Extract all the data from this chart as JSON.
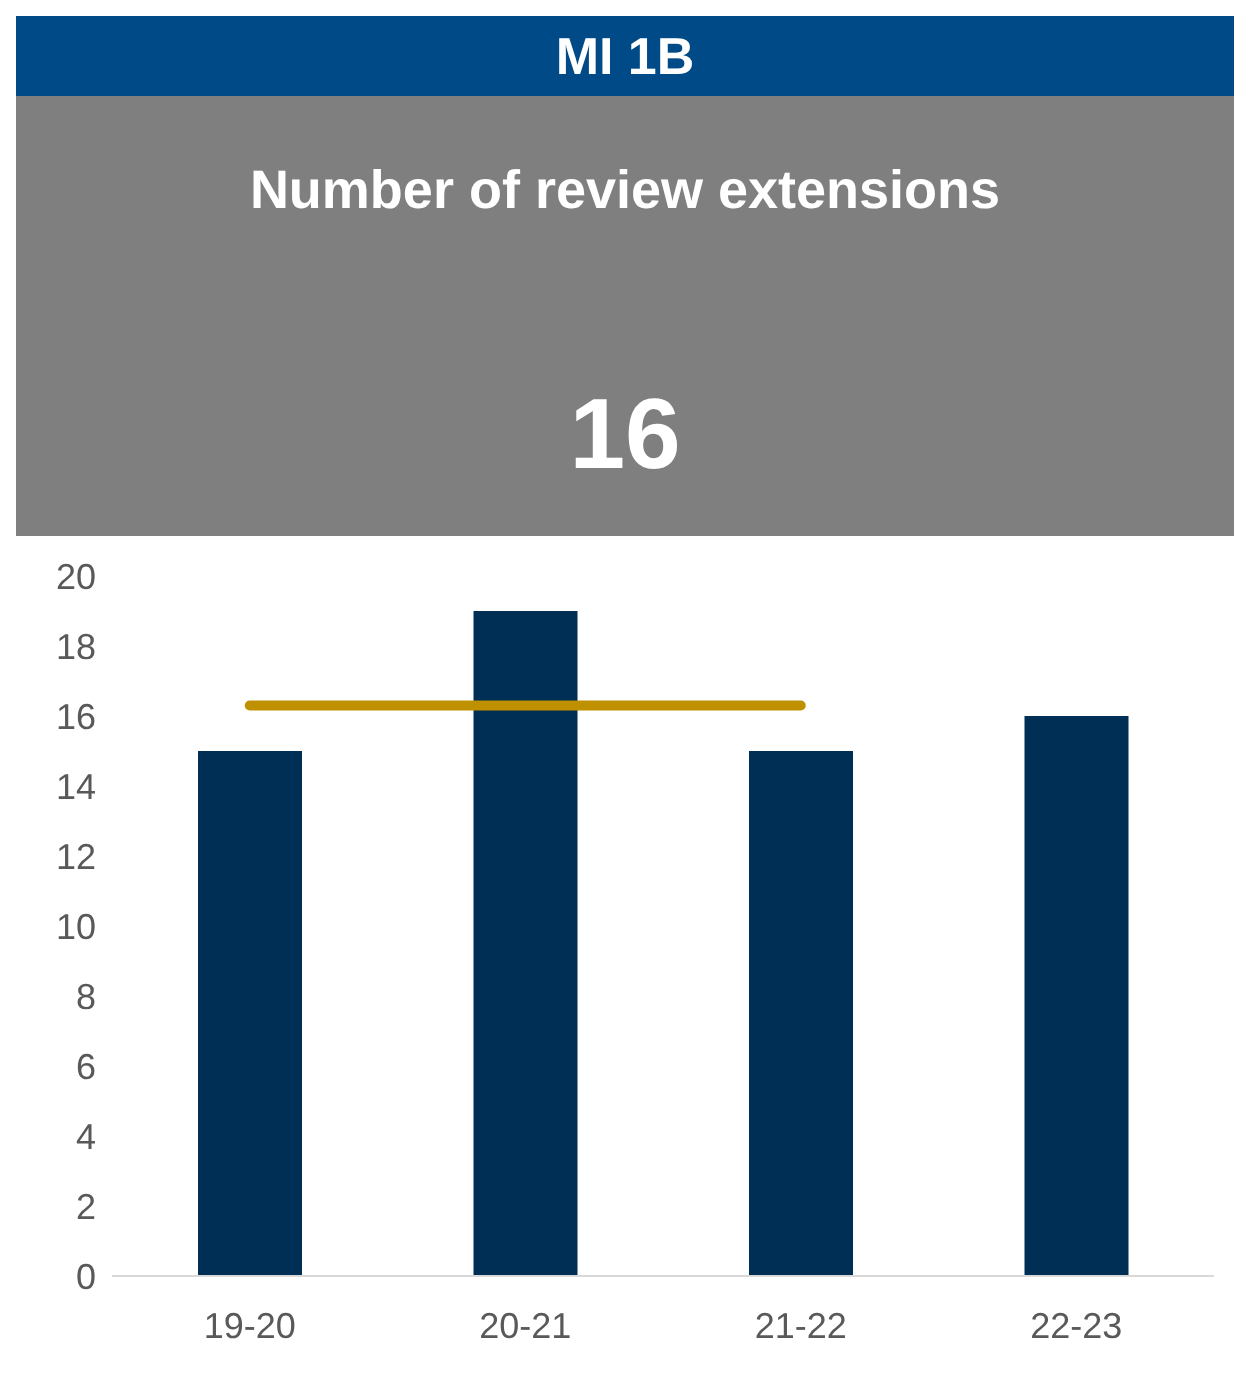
{
  "chart_data": {
    "type": "bar",
    "title": "MI 1B",
    "subtitle": "Number of review extensions",
    "annotations": [
      "16"
    ],
    "categories": [
      "19-20",
      "20-21",
      "21-22",
      "22-23"
    ],
    "series": [
      {
        "color": "#002f56",
        "values": [
          15,
          19,
          15,
          16
        ]
      },
      {
        "type": "line",
        "color": "#bf9000",
        "values": [
          16.3,
          16.3,
          16.3,
          null
        ]
      }
    ],
    "ylim": [
      0,
      20
    ],
    "yticks": [
      0,
      2,
      4,
      6,
      8,
      10,
      12,
      14,
      16,
      18,
      20
    ],
    "grid": false,
    "marker": "none",
    "line_style": "solid"
  }
}
